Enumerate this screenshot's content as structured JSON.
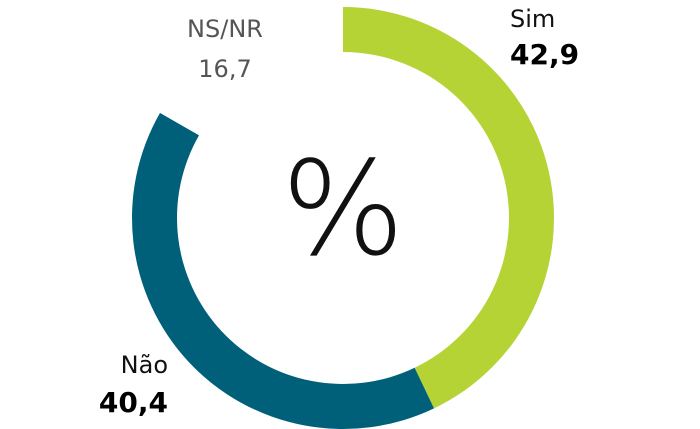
{
  "chart_data": {
    "type": "donut",
    "categories": [
      "Sim",
      "Não",
      "NS/NR"
    ],
    "values": [
      42.9,
      40.4,
      16.7
    ],
    "value_labels": [
      "42,9",
      "40,4",
      "16,7"
    ],
    "colors": [
      "#b5d334",
      "#00607a",
      "#ffffff"
    ],
    "center_label": "%"
  }
}
